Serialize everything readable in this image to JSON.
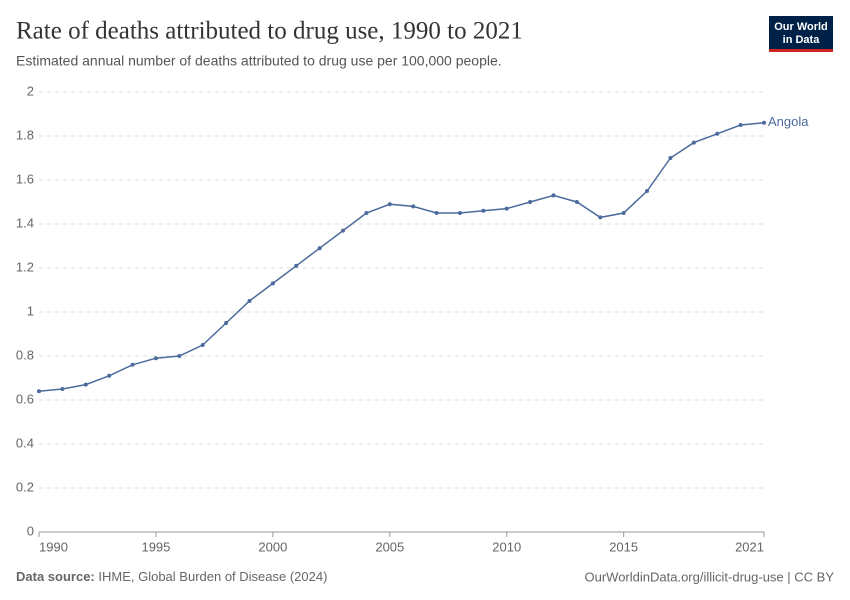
{
  "chart_data": {
    "type": "line",
    "title": "Rate of deaths attributed to drug use, 1990 to 2021",
    "subtitle": "Estimated annual number of deaths attributed to drug use per 100,000 people.",
    "logo": [
      "Our World",
      "in Data"
    ],
    "source_label": "Data source:",
    "source": "IHME, Global Burden of Disease (2024)",
    "credit": "OurWorldinData.org/illicit-drug-use | CC BY",
    "x": [
      1990,
      1991,
      1992,
      1993,
      1994,
      1995,
      1996,
      1997,
      1998,
      1999,
      2000,
      2001,
      2002,
      2003,
      2004,
      2005,
      2006,
      2007,
      2008,
      2009,
      2010,
      2011,
      2012,
      2013,
      2014,
      2015,
      2016,
      2017,
      2018,
      2019,
      2020,
      2021
    ],
    "series": [
      {
        "name": "Angola",
        "color": "#4c6a9c",
        "values": [
          0.64,
          0.65,
          0.67,
          0.71,
          0.76,
          0.79,
          0.8,
          0.85,
          0.95,
          1.05,
          1.13,
          1.21,
          1.29,
          1.37,
          1.45,
          1.49,
          1.48,
          1.45,
          1.45,
          1.46,
          1.47,
          1.5,
          1.53,
          1.5,
          1.43,
          1.45,
          1.55,
          1.7,
          1.77,
          1.81,
          1.85,
          1.86
        ]
      }
    ],
    "xlim": [
      1990,
      2021
    ],
    "xticks": [
      1990,
      1995,
      2000,
      2005,
      2010,
      2015,
      2021
    ],
    "ylim": [
      0,
      2
    ],
    "yticks": [
      0,
      0.2,
      0.4,
      0.6,
      0.8,
      1,
      1.2,
      1.4,
      1.6,
      1.8,
      2
    ],
    "grid": true
  }
}
